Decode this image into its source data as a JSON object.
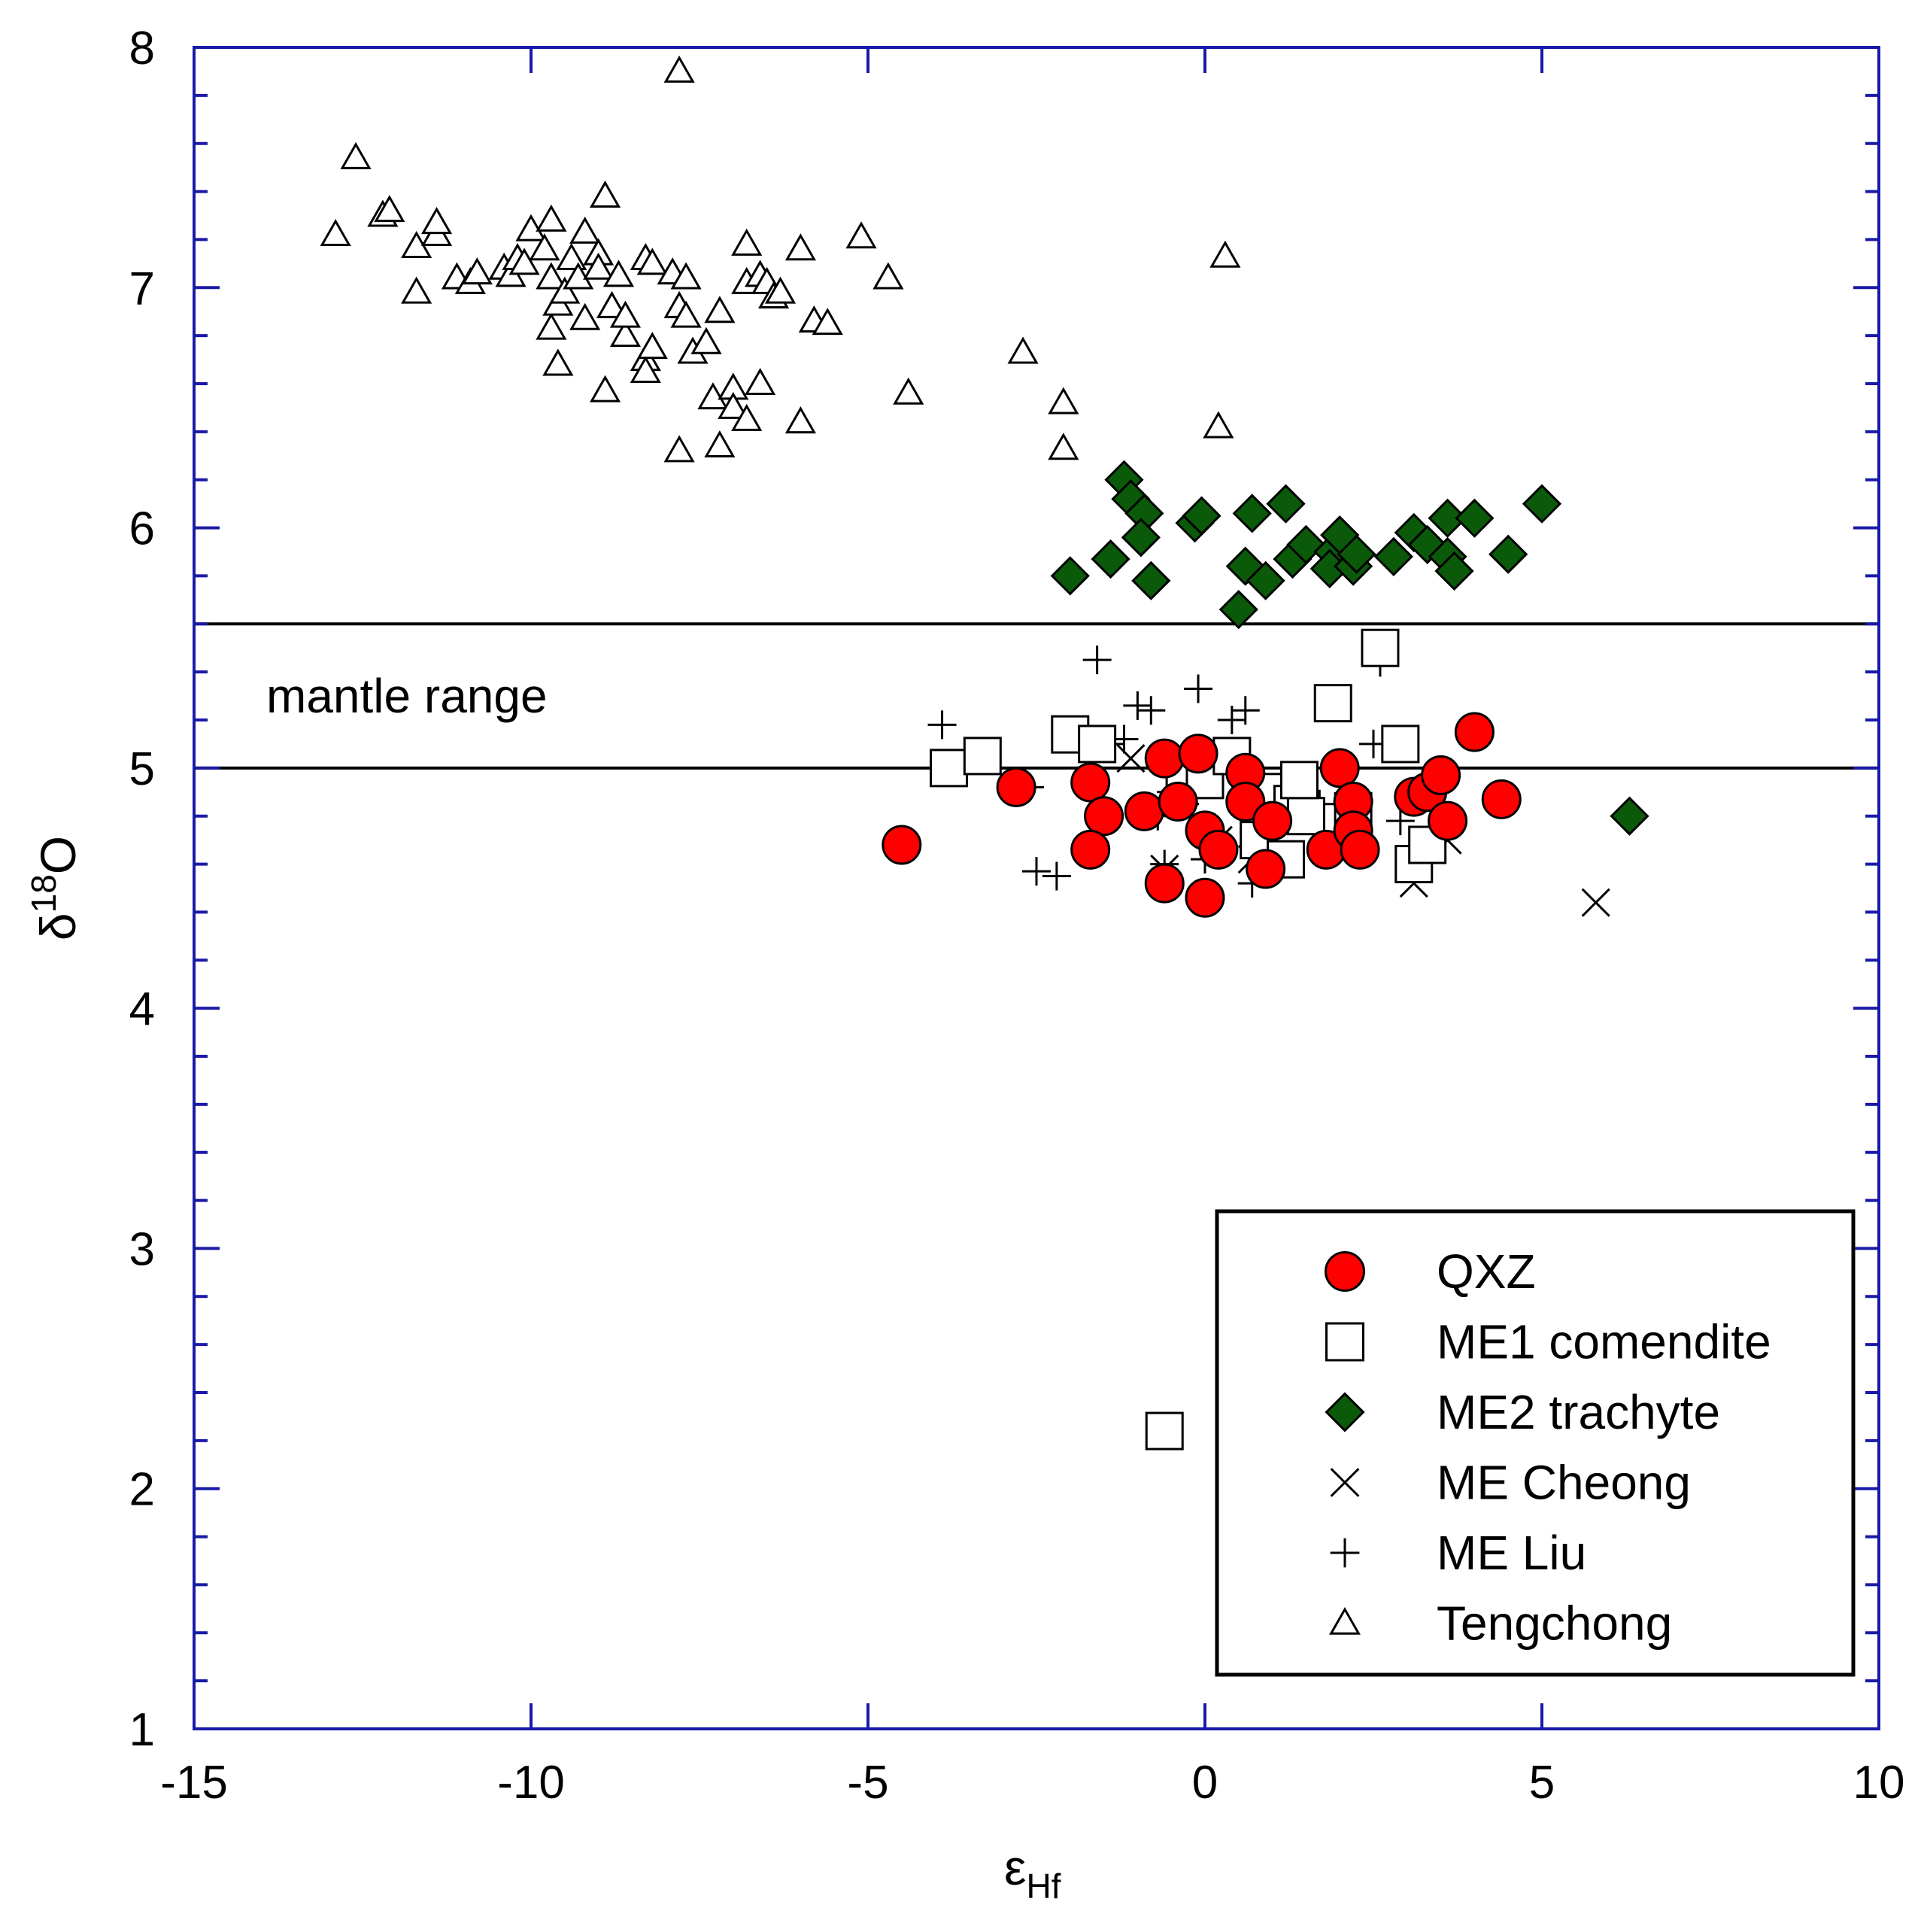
{
  "chart_data": {
    "type": "scatter",
    "xlabel": "ε",
    "xlabel_sub": "Hf",
    "ylabel": "δ",
    "ylabel_sup": "18",
    "ylabel_main": "O",
    "xlim": [
      -15,
      10
    ],
    "ylim": [
      1,
      8
    ],
    "x_ticks": [
      "-15",
      "-10",
      "-5",
      "0",
      "5",
      "10"
    ],
    "y_ticks": [
      "1",
      "2",
      "3",
      "4",
      "5",
      "6",
      "7",
      "8"
    ],
    "grid": false,
    "legend_position": "bottom-right",
    "colors": {
      "axis_frame": "#1a1aa8",
      "qxz_fill": "#ff0000",
      "me2_fill": "#0a5a0a",
      "marker_stroke": "#000000"
    },
    "annotations": [
      {
        "text": "mantle range",
        "band_y": [
          5.0,
          5.6
        ]
      }
    ],
    "series": [
      {
        "name": "QXZ",
        "marker": "circle",
        "points": [
          [
            -4.5,
            4.68
          ],
          [
            -2.8,
            4.92
          ],
          [
            -1.7,
            4.94
          ],
          [
            -1.5,
            4.8
          ],
          [
            -1.7,
            4.66
          ],
          [
            -0.9,
            4.82
          ],
          [
            -0.6,
            5.04
          ],
          [
            -0.6,
            4.52
          ],
          [
            -0.4,
            4.86
          ],
          [
            -0.1,
            5.06
          ],
          [
            0.0,
            4.74
          ],
          [
            0.2,
            4.66
          ],
          [
            0.0,
            4.46
          ],
          [
            0.6,
            4.98
          ],
          [
            0.6,
            4.86
          ],
          [
            1.0,
            4.78
          ],
          [
            0.9,
            4.58
          ],
          [
            1.8,
            4.66
          ],
          [
            2.0,
            5.0
          ],
          [
            2.2,
            4.86
          ],
          [
            2.2,
            4.74
          ],
          [
            2.3,
            4.66
          ],
          [
            3.1,
            4.88
          ],
          [
            3.3,
            4.9
          ],
          [
            3.5,
            4.97
          ],
          [
            3.6,
            4.78
          ],
          [
            4.0,
            5.15
          ],
          [
            4.4,
            4.87
          ]
        ]
      },
      {
        "name": "ME1 comendite",
        "marker": "square",
        "points": [
          [
            -3.8,
            5.0
          ],
          [
            -3.3,
            5.05
          ],
          [
            -2.0,
            5.14
          ],
          [
            -1.6,
            5.1
          ],
          [
            -0.6,
            2.24
          ],
          [
            -0.3,
            5.0
          ],
          [
            0.0,
            4.95
          ],
          [
            0.4,
            5.05
          ],
          [
            1.0,
            4.9
          ],
          [
            1.3,
            4.85
          ],
          [
            1.5,
            4.8
          ],
          [
            1.4,
            4.95
          ],
          [
            0.8,
            4.7
          ],
          [
            1.2,
            4.62
          ],
          [
            1.9,
            5.27
          ],
          [
            2.6,
            5.5
          ],
          [
            2.2,
            4.82
          ],
          [
            2.9,
            5.1
          ],
          [
            3.1,
            4.6
          ],
          [
            3.3,
            4.68
          ]
        ]
      },
      {
        "name": "ME2 trachyte",
        "marker": "diamond",
        "points": [
          [
            -2.0,
            5.8
          ],
          [
            -1.4,
            5.87
          ],
          [
            -1.2,
            6.2
          ],
          [
            -1.1,
            6.12
          ],
          [
            -0.9,
            6.06
          ],
          [
            -0.95,
            5.96
          ],
          [
            -0.8,
            5.78
          ],
          [
            -0.15,
            6.02
          ],
          [
            -0.05,
            6.05
          ],
          [
            0.5,
            5.66
          ],
          [
            0.6,
            5.84
          ],
          [
            0.7,
            6.06
          ],
          [
            0.9,
            5.78
          ],
          [
            1.2,
            6.1
          ],
          [
            1.3,
            5.87
          ],
          [
            1.5,
            5.93
          ],
          [
            1.9,
            5.9
          ],
          [
            1.85,
            5.83
          ],
          [
            2.0,
            5.97
          ],
          [
            2.2,
            5.84
          ],
          [
            2.25,
            5.89
          ],
          [
            2.8,
            5.88
          ],
          [
            3.1,
            5.98
          ],
          [
            3.3,
            5.93
          ],
          [
            3.6,
            5.88
          ],
          [
            3.7,
            5.82
          ],
          [
            3.6,
            6.04
          ],
          [
            4.0,
            6.04
          ],
          [
            4.5,
            5.89
          ],
          [
            5.0,
            6.1
          ],
          [
            6.3,
            4.8
          ]
        ]
      },
      {
        "name": "ME Cheong",
        "marker": "x",
        "points": [
          [
            -1.1,
            5.04
          ],
          [
            -0.6,
            4.58
          ],
          [
            0.2,
            4.7
          ],
          [
            0.7,
            4.62
          ],
          [
            1.5,
            4.82
          ],
          [
            3.1,
            4.52
          ],
          [
            3.6,
            4.7
          ],
          [
            5.8,
            4.44
          ]
        ]
      },
      {
        "name": "ME Liu",
        "marker": "plus",
        "points": [
          [
            -3.9,
            5.18
          ],
          [
            -2.6,
            4.92
          ],
          [
            -2.5,
            4.57
          ],
          [
            -2.2,
            4.55
          ],
          [
            -1.6,
            5.45
          ],
          [
            -1.6,
            5.12
          ],
          [
            -1.4,
            5.1
          ],
          [
            -1.2,
            5.12
          ],
          [
            -1.0,
            5.26
          ],
          [
            -0.8,
            5.24
          ],
          [
            -0.7,
            4.8
          ],
          [
            -0.6,
            4.6
          ],
          [
            -0.5,
            4.9
          ],
          [
            -0.3,
            4.85
          ],
          [
            -0.1,
            5.33
          ],
          [
            0.0,
            4.62
          ],
          [
            0.1,
            4.68
          ],
          [
            0.4,
            5.2
          ],
          [
            0.6,
            5.24
          ],
          [
            0.7,
            4.52
          ],
          [
            0.8,
            4.9
          ],
          [
            1.1,
            4.8
          ],
          [
            1.3,
            4.92
          ],
          [
            1.7,
            4.85
          ],
          [
            2.2,
            4.8
          ],
          [
            2.5,
            5.1
          ],
          [
            2.6,
            5.44
          ],
          [
            2.9,
            4.78
          ],
          [
            3.3,
            4.95
          ]
        ]
      },
      {
        "name": "Tengchong",
        "marker": "triangle",
        "points": [
          [
            -12.9,
            7.22
          ],
          [
            -12.6,
            7.54
          ],
          [
            -12.2,
            7.3
          ],
          [
            -12.1,
            7.32
          ],
          [
            -11.7,
            7.17
          ],
          [
            -11.7,
            6.98
          ],
          [
            -11.4,
            7.22
          ],
          [
            -11.4,
            7.27
          ],
          [
            -11.1,
            7.04
          ],
          [
            -10.9,
            7.02
          ],
          [
            -10.8,
            7.06
          ],
          [
            -10.4,
            7.08
          ],
          [
            -10.3,
            7.05
          ],
          [
            -10.2,
            7.12
          ],
          [
            -10.1,
            7.1
          ],
          [
            -10.0,
            7.24
          ],
          [
            -9.8,
            7.16
          ],
          [
            -9.7,
            6.83
          ],
          [
            -9.7,
            7.04
          ],
          [
            -9.7,
            7.28
          ],
          [
            -9.6,
            6.68
          ],
          [
            -9.6,
            6.93
          ],
          [
            -9.5,
            6.98
          ],
          [
            -9.4,
            7.12
          ],
          [
            -9.3,
            7.04
          ],
          [
            -9.2,
            6.87
          ],
          [
            -9.2,
            7.23
          ],
          [
            -9.0,
            7.14
          ],
          [
            -9.0,
            7.08
          ],
          [
            -8.9,
            7.38
          ],
          [
            -8.9,
            6.57
          ],
          [
            -8.8,
            6.92
          ],
          [
            -8.7,
            7.05
          ],
          [
            -8.6,
            6.8
          ],
          [
            -8.6,
            6.88
          ],
          [
            -8.3,
            7.12
          ],
          [
            -8.2,
            7.1
          ],
          [
            -8.3,
            6.7
          ],
          [
            -8.3,
            6.65
          ],
          [
            -8.2,
            6.75
          ],
          [
            -7.9,
            7.06
          ],
          [
            -7.8,
            6.92
          ],
          [
            -7.7,
            6.88
          ],
          [
            -7.7,
            7.04
          ],
          [
            -7.8,
            7.9
          ],
          [
            -7.8,
            6.32
          ],
          [
            -7.6,
            6.73
          ],
          [
            -7.4,
            6.77
          ],
          [
            -7.3,
            6.54
          ],
          [
            -7.2,
            6.9
          ],
          [
            -7.2,
            6.34
          ],
          [
            -7.0,
            6.58
          ],
          [
            -7.0,
            6.5
          ],
          [
            -6.8,
            6.45
          ],
          [
            -6.8,
            7.02
          ],
          [
            -6.8,
            7.18
          ],
          [
            -6.6,
            7.05
          ],
          [
            -6.6,
            6.6
          ],
          [
            -6.5,
            7.02
          ],
          [
            -6.4,
            6.96
          ],
          [
            -6.3,
            6.98
          ],
          [
            -6.0,
            7.16
          ],
          [
            -6.0,
            6.44
          ],
          [
            -5.8,
            6.86
          ],
          [
            -5.6,
            6.85
          ],
          [
            -5.1,
            7.21
          ],
          [
            -4.7,
            7.04
          ],
          [
            -4.4,
            6.56
          ],
          [
            -2.7,
            6.73
          ],
          [
            -2.1,
            6.52
          ],
          [
            -2.1,
            6.33
          ],
          [
            0.2,
            6.42
          ],
          [
            0.3,
            7.13
          ]
        ]
      }
    ]
  }
}
